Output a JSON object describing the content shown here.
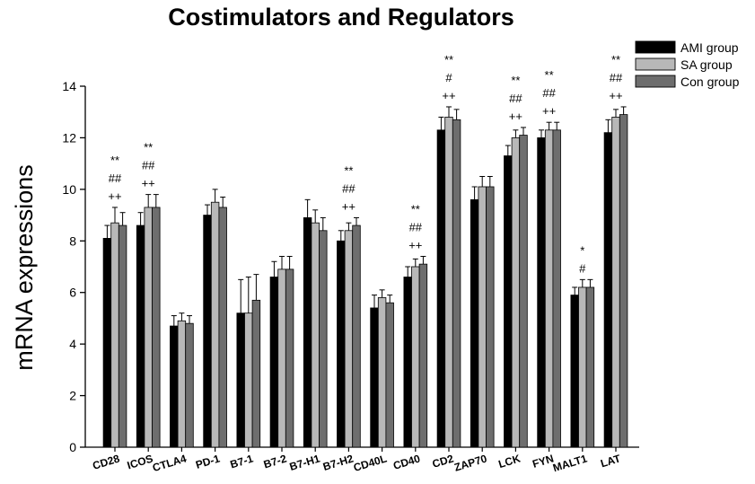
{
  "chart_data": {
    "type": "bar",
    "title": "Costimulators and Regulators",
    "ylabel": "mRNA expressions",
    "xlabel": "",
    "ylim": [
      0,
      14
    ],
    "yticks": [
      0,
      2,
      4,
      6,
      8,
      10,
      12,
      14
    ],
    "legend_position": "top-right",
    "categories": [
      "CD28",
      "ICOS",
      "CTLA4",
      "PD-1",
      "B7-1",
      "B7-2",
      "B7-H1",
      "B7-H2",
      "CD40L",
      "CD40",
      "CD2",
      "ZAP70",
      "LCK",
      "FYN",
      "MALT1",
      "LAT"
    ],
    "series": [
      {
        "name": "AMI group",
        "color": "#000000",
        "values": [
          8.1,
          8.6,
          4.7,
          9.0,
          5.2,
          6.6,
          8.9,
          8.0,
          5.4,
          6.6,
          12.3,
          9.6,
          11.3,
          12.0,
          5.9,
          12.2
        ],
        "errors": [
          0.5,
          0.5,
          0.4,
          0.4,
          1.3,
          0.6,
          0.7,
          0.4,
          0.5,
          0.4,
          0.5,
          0.5,
          0.4,
          0.3,
          0.3,
          0.5
        ]
      },
      {
        "name": "SA group",
        "color": "#b8b8b8",
        "values": [
          8.7,
          9.3,
          4.9,
          9.5,
          5.2,
          6.9,
          8.7,
          8.4,
          5.8,
          7.0,
          12.8,
          10.1,
          12.0,
          12.3,
          6.2,
          12.8
        ],
        "errors": [
          0.6,
          0.5,
          0.3,
          0.5,
          1.4,
          0.5,
          0.5,
          0.3,
          0.3,
          0.3,
          0.4,
          0.4,
          0.3,
          0.3,
          0.3,
          0.3
        ]
      },
      {
        "name": "Con group",
        "color": "#6e6e6e",
        "values": [
          8.6,
          9.3,
          4.8,
          9.3,
          5.7,
          6.9,
          8.4,
          8.6,
          5.6,
          7.1,
          12.7,
          10.1,
          12.1,
          12.3,
          6.2,
          12.9
        ],
        "errors": [
          0.5,
          0.5,
          0.3,
          0.4,
          1.0,
          0.5,
          0.5,
          0.3,
          0.3,
          0.3,
          0.4,
          0.4,
          0.3,
          0.3,
          0.3,
          0.3
        ]
      }
    ],
    "annotations": [
      {
        "category": "CD28",
        "lines": [
          "**",
          "##",
          "++"
        ]
      },
      {
        "category": "ICOS",
        "lines": [
          "**",
          "##",
          "++"
        ]
      },
      {
        "category": "B7-H2",
        "lines": [
          "**",
          "##",
          "++"
        ]
      },
      {
        "category": "CD40",
        "lines": [
          "**",
          "##",
          "++"
        ]
      },
      {
        "category": "CD2",
        "lines": [
          "**",
          "#",
          "++"
        ]
      },
      {
        "category": "LCK",
        "lines": [
          "**",
          "##",
          "++"
        ]
      },
      {
        "category": "FYN",
        "lines": [
          "**",
          "##",
          "++"
        ]
      },
      {
        "category": "MALT1",
        "lines": [
          "*",
          "#"
        ]
      },
      {
        "category": "LAT",
        "lines": [
          "**",
          "##",
          "++"
        ]
      }
    ]
  }
}
